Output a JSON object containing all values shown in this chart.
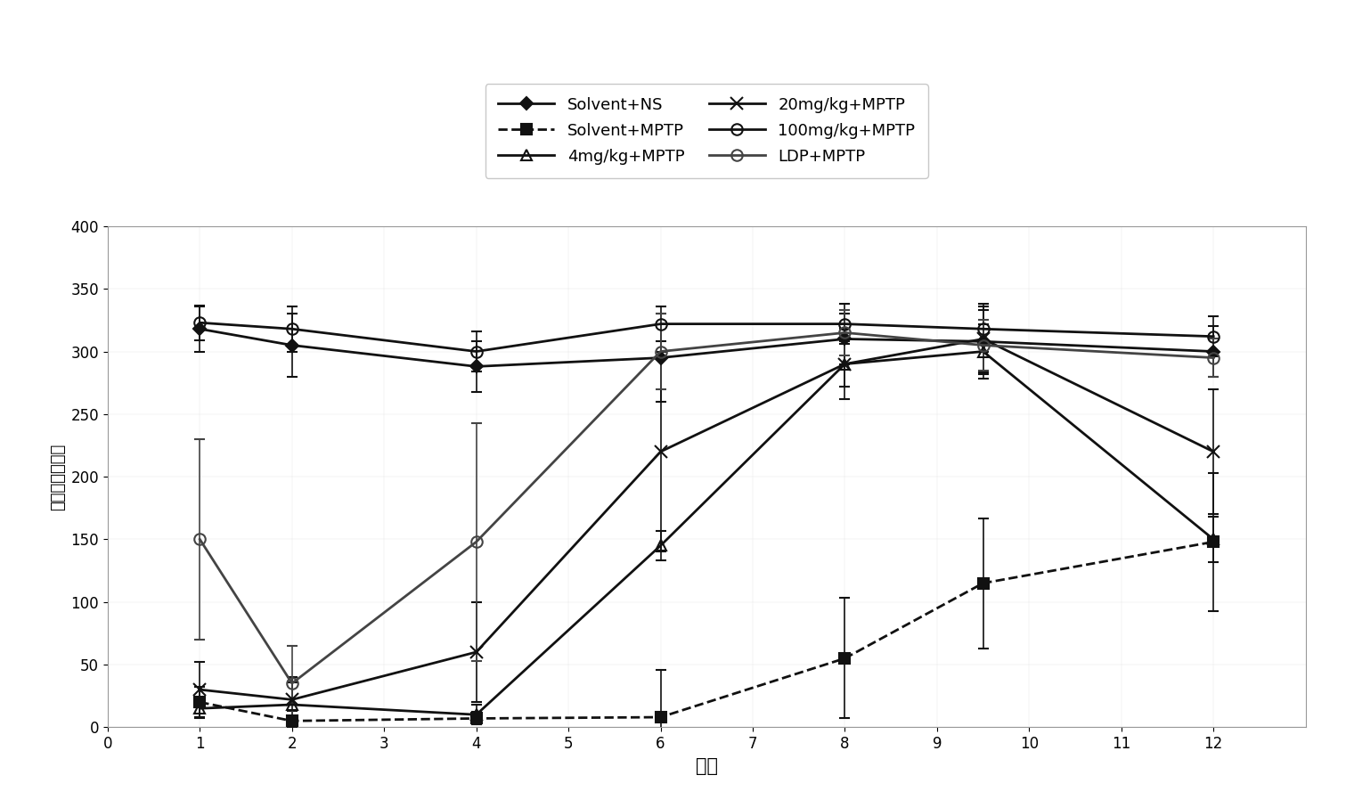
{
  "x_values": [
    1,
    2,
    4,
    6,
    8,
    9.5,
    12
  ],
  "series": [
    {
      "name": "Solvent+NS",
      "y": [
        318,
        305,
        288,
        295,
        310,
        308,
        300
      ],
      "yerr": [
        18,
        25,
        20,
        35,
        20,
        25,
        20
      ],
      "color": "#111111",
      "linestyle": "-",
      "marker": "D",
      "markersize": 7,
      "linewidth": 2,
      "filled": true
    },
    {
      "name": "Solvent+MPTP",
      "y": [
        20,
        5,
        7,
        8,
        55,
        115,
        148
      ],
      "yerr": [
        12,
        8,
        5,
        38,
        48,
        52,
        55
      ],
      "color": "#111111",
      "linestyle": "--",
      "marker": "s",
      "markersize": 8,
      "linewidth": 2,
      "filled": true
    },
    {
      "name": "4mg/kg+MPTP",
      "y": [
        15,
        18,
        10,
        145,
        290,
        300,
        150
      ],
      "yerr": [
        8,
        18,
        8,
        12,
        18,
        22,
        18
      ],
      "color": "#111111",
      "linestyle": "-",
      "marker": "^",
      "markersize": 9,
      "linewidth": 2,
      "filled": false
    },
    {
      "name": "20mg/kg+MPTP",
      "y": [
        30,
        22,
        60,
        220,
        290,
        310,
        220
      ],
      "yerr": [
        22,
        18,
        40,
        80,
        28,
        28,
        50
      ],
      "color": "#111111",
      "linestyle": "-",
      "marker": "x",
      "markersize": 10,
      "linewidth": 2,
      "filled": true
    },
    {
      "name": "100mg/kg+MPTP",
      "y": [
        323,
        318,
        300,
        322,
        322,
        318,
        312
      ],
      "yerr": [
        14,
        18,
        16,
        14,
        16,
        18,
        16
      ],
      "color": "#111111",
      "linestyle": "-",
      "marker": "o",
      "markersize": 9,
      "linewidth": 2,
      "filled": false
    },
    {
      "name": "LDP+MPTP",
      "y": [
        150,
        35,
        148,
        300,
        315,
        305,
        295
      ],
      "yerr": [
        80,
        30,
        95,
        30,
        18,
        20,
        15
      ],
      "color": "#444444",
      "linestyle": "-",
      "marker": "o",
      "markersize": 9,
      "linewidth": 2,
      "filled": false
    }
  ],
  "xlabel": "小时",
  "ylabel": "停留时间（秒）",
  "xlim": [
    0,
    13
  ],
  "ylim": [
    0,
    400
  ],
  "xticks": [
    0,
    1,
    2,
    3,
    4,
    5,
    6,
    7,
    8,
    9,
    10,
    11,
    12
  ],
  "yticks": [
    0,
    50,
    100,
    150,
    200,
    250,
    300,
    350,
    400
  ],
  "legend_col1": [
    "Solvent+NS",
    "4mg/kg+MPTP",
    "100mg/kg+MPTP"
  ],
  "legend_col2": [
    "Solvent+MPTP",
    "20mg/kg+MPTP",
    "LDP+MPTP"
  ]
}
